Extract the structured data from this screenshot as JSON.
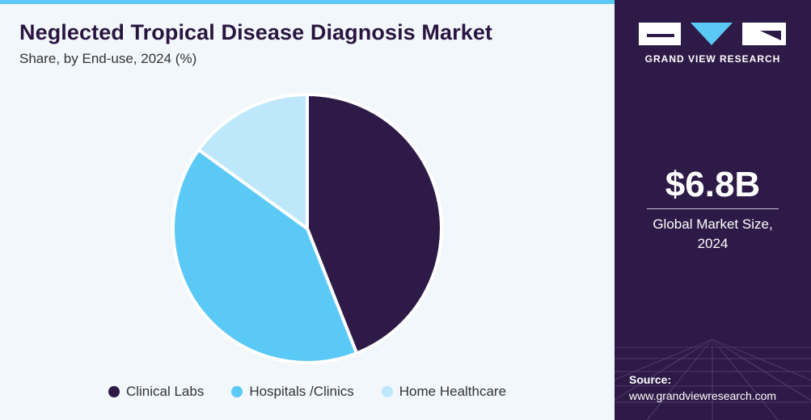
{
  "header": {
    "title": "Neglected Tropical Disease Diagnosis Market",
    "subtitle": "Share, by End-use, 2024 (%)"
  },
  "chart_data": {
    "type": "pie",
    "categories": [
      "Clinical Labs",
      "Hospitals /Clinics",
      "Home Healthcare"
    ],
    "values": [
      44,
      41,
      15
    ],
    "colors": [
      "#2e1a47",
      "#5bc9f5",
      "#bde7fb"
    ],
    "legend_position": "bottom"
  },
  "legend": {
    "items": [
      "Clinical Labs",
      "Hospitals /Clinics",
      "Home Healthcare"
    ]
  },
  "sidebar": {
    "brand": "GRAND VIEW RESEARCH",
    "market_value": "$6.8B",
    "market_label_line1": "Global Market Size,",
    "market_label_line2": "2024",
    "source_label": "Source:",
    "source_url": "www.grandviewresearch.com"
  }
}
